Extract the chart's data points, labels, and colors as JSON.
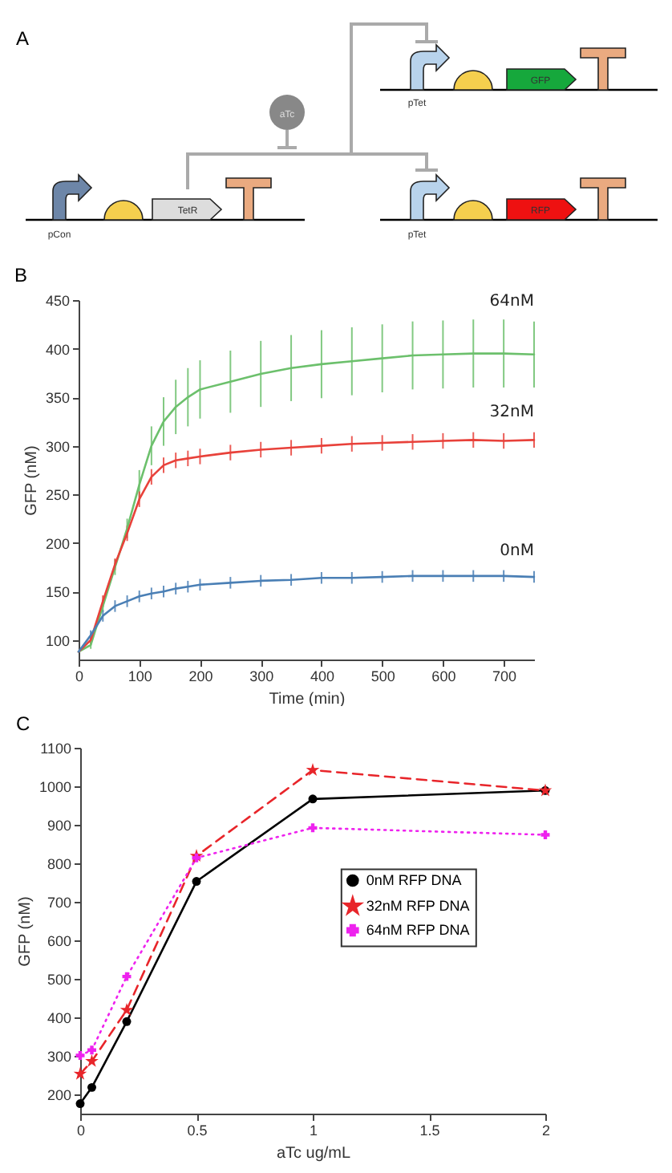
{
  "chart_data": [
    {
      "type": "other",
      "title": "A",
      "annotations": [
        "pCon",
        "TetR",
        "aTc",
        "pTet",
        "GFP",
        "pTet",
        "RFP"
      ]
    },
    {
      "type": "line",
      "title": "B",
      "xlabel": "Time (min)",
      "ylabel": "GFP (nM)",
      "xlim": [
        0,
        750
      ],
      "ylim": [
        80,
        450
      ],
      "xticks": [
        0,
        100,
        200,
        300,
        400,
        500,
        600,
        700
      ],
      "yticks": [
        100,
        150,
        200,
        250,
        300,
        350,
        400,
        450
      ],
      "grid": false,
      "x": [
        0,
        20,
        40,
        60,
        80,
        100,
        120,
        140,
        160,
        180,
        200,
        250,
        300,
        350,
        400,
        450,
        500,
        550,
        600,
        650,
        700,
        750
      ],
      "series": [
        {
          "name": "64nM",
          "color": "#6cc06c",
          "values": [
            88,
            95,
            135,
            175,
            215,
            260,
            300,
            325,
            340,
            350,
            358,
            366,
            374,
            380,
            384,
            387,
            390,
            393,
            394,
            395,
            395,
            394
          ],
          "errors": [
            null,
            4,
            6,
            8,
            10,
            15,
            20,
            25,
            28,
            30,
            30,
            32,
            34,
            34,
            35,
            35,
            35,
            35,
            35,
            35,
            35,
            34
          ]
        },
        {
          "name": "32nM",
          "color": "#e8413a",
          "values": [
            88,
            100,
            140,
            178,
            210,
            245,
            268,
            280,
            285,
            287,
            289,
            293,
            296,
            298,
            300,
            302,
            303,
            304,
            305,
            306,
            305,
            306
          ],
          "errors": [
            null,
            5,
            6,
            6,
            8,
            8,
            8,
            8,
            8,
            8,
            8,
            8,
            8,
            8,
            8,
            8,
            8,
            8,
            8,
            8,
            8,
            8
          ]
        },
        {
          "name": "0nM",
          "color": "#4a7fb5",
          "values": [
            88,
            105,
            125,
            135,
            140,
            145,
            148,
            150,
            153,
            155,
            157,
            159,
            161,
            162,
            164,
            164,
            165,
            166,
            166,
            166,
            166,
            165
          ],
          "errors": [
            null,
            5,
            6,
            6,
            6,
            6,
            6,
            6,
            6,
            6,
            6,
            6,
            6,
            6,
            6,
            6,
            6,
            6,
            6,
            6,
            6,
            6
          ]
        }
      ]
    },
    {
      "type": "line",
      "title": "C",
      "xlabel": "aTc ug/mL",
      "ylabel": "GFP (nM)",
      "xlim": [
        0,
        2
      ],
      "ylim": [
        150,
        1100
      ],
      "xticks": [
        0,
        0.5,
        1,
        1.5,
        2
      ],
      "yticks": [
        200,
        300,
        400,
        500,
        600,
        700,
        800,
        900,
        1000,
        1100
      ],
      "grid": false,
      "legend": "right",
      "x": [
        0,
        0.05,
        0.2,
        0.5,
        1,
        2
      ],
      "series": [
        {
          "name": "0nM RFP DNA",
          "color": "#000000",
          "marker": "circle",
          "line_style": "solid",
          "values": [
            176,
            218,
            389,
            753,
            967,
            989
          ]
        },
        {
          "name": "32nM RFP DNA",
          "color": "#e8252a",
          "marker": "star",
          "line_style": "dashed",
          "values": [
            253,
            286,
            419,
            819,
            1042,
            989
          ]
        },
        {
          "name": "64nM RFP DNA",
          "color": "#ee22ee",
          "marker": "cross",
          "line_style": "dotted",
          "values": [
            301,
            315,
            506,
            814,
            892,
            874
          ]
        }
      ]
    }
  ]
}
